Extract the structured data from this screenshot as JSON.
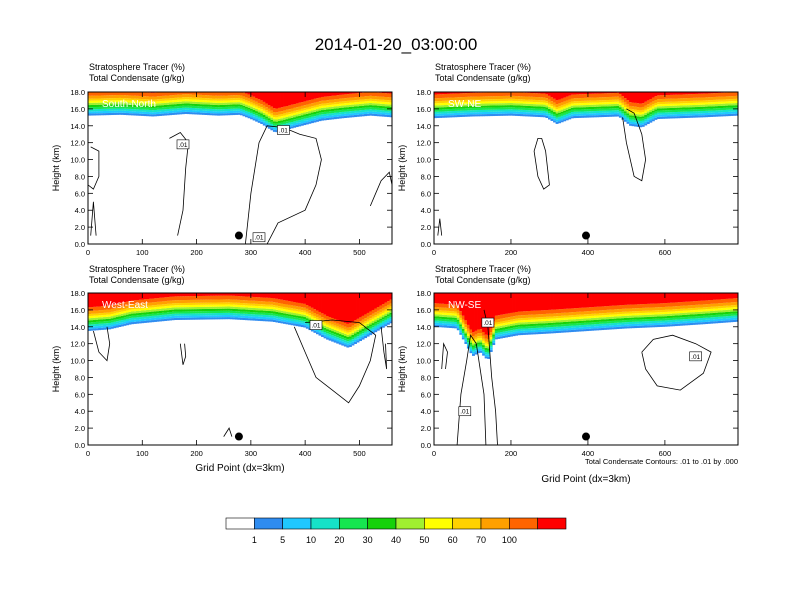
{
  "title": "2014-01-20_03:00:00",
  "colors": {
    "levels": [
      "#ffffff",
      "#2f8cf0",
      "#1fc8ff",
      "#16e2c8",
      "#16e650",
      "#16d20a",
      "#a0f030",
      "#ffff00",
      "#ffd200",
      "#ffa000",
      "#ff6400",
      "#ff0000"
    ],
    "contour": "#000000"
  },
  "chart_data": [
    {
      "type": "heatmap",
      "panel_id": "south-north",
      "label": "South-North",
      "header": [
        "Stratosphere Tracer   (%)",
        "Total Condensate   (g/kg)"
      ],
      "ylabel": "Height (km)",
      "xlabel": "",
      "xlim": [
        0,
        560
      ],
      "ylim": [
        0,
        18
      ],
      "xticks": [
        0,
        100,
        200,
        300,
        400,
        500
      ],
      "yticks": [
        0,
        2,
        4,
        6,
        8,
        10,
        12,
        14,
        16,
        18
      ],
      "ytick_labels": [
        "0.0",
        "2.0",
        "4.0",
        "6.0",
        "8.0",
        "10.0",
        "12.0",
        "14.0",
        "16.0",
        "18.0"
      ],
      "tracer_base_km": 15.0,
      "tracer_profile": [
        [
          0,
          15.2
        ],
        [
          60,
          15.3
        ],
        [
          120,
          15.1
        ],
        [
          180,
          15.4
        ],
        [
          240,
          15.2
        ],
        [
          280,
          15.3
        ],
        [
          300,
          14.8
        ],
        [
          320,
          14.2
        ],
        [
          345,
          13.2
        ],
        [
          370,
          13.6
        ],
        [
          400,
          14.1
        ],
        [
          430,
          14.6
        ],
        [
          470,
          14.9
        ],
        [
          520,
          15.2
        ],
        [
          560,
          15.0
        ]
      ],
      "contour_labels": [
        {
          "x": 360,
          "y": 13.5,
          "text": ".01"
        },
        {
          "x": 175,
          "y": 11.8,
          "text": ".01"
        },
        {
          "x": 315,
          "y": 0.8,
          "text": ".01"
        }
      ],
      "marker": {
        "x": 278,
        "y": 1.0
      },
      "contours": [
        [
          [
            5,
            11.5
          ],
          [
            20,
            11.0
          ],
          [
            20,
            8.0
          ],
          [
            10,
            6.5
          ],
          [
            0,
            7.0
          ]
        ],
        [
          [
            150,
            12.5
          ],
          [
            170,
            13.2
          ],
          [
            185,
            12.0
          ],
          [
            180,
            9.0
          ],
          [
            175,
            4.0
          ],
          [
            165,
            1.0
          ]
        ],
        [
          [
            290,
            0.0
          ],
          [
            300,
            6.0
          ],
          [
            315,
            12.0
          ],
          [
            330,
            14.0
          ],
          [
            360,
            13.8
          ],
          [
            390,
            13.0
          ],
          [
            420,
            12.5
          ],
          [
            430,
            10.0
          ],
          [
            420,
            7.0
          ],
          [
            400,
            4.0
          ],
          [
            350,
            2.5
          ],
          [
            330,
            0.0
          ]
        ],
        [
          [
            520,
            4.5
          ],
          [
            530,
            6.0
          ],
          [
            540,
            7.5
          ],
          [
            555,
            8.5
          ],
          [
            560,
            7.0
          ]
        ],
        [
          [
            5,
            1.0
          ],
          [
            10,
            5.0
          ],
          [
            15,
            1.0
          ]
        ]
      ]
    },
    {
      "type": "heatmap",
      "panel_id": "sw-ne",
      "label": "SW-NE",
      "header": [
        "Stratosphere Tracer   (%)",
        "Total Condensate   (g/kg)"
      ],
      "ylabel": "Height (km)",
      "xlabel": "",
      "xlim": [
        0,
        790
      ],
      "ylim": [
        0,
        18
      ],
      "xticks": [
        0,
        200,
        400,
        600
      ],
      "yticks": [
        0,
        2,
        4,
        6,
        8,
        10,
        12,
        14,
        16,
        18
      ],
      "ytick_labels": [
        "0.0",
        "2.0",
        "4.0",
        "6.0",
        "8.0",
        "10.0",
        "12.0",
        "14.0",
        "16.0",
        "18.0"
      ],
      "tracer_base_km": 15.0,
      "tracer_profile": [
        [
          0,
          14.9
        ],
        [
          100,
          15.1
        ],
        [
          200,
          15.2
        ],
        [
          290,
          15.0
        ],
        [
          320,
          14.2
        ],
        [
          360,
          14.9
        ],
        [
          480,
          15.1
        ],
        [
          510,
          14.0
        ],
        [
          540,
          13.8
        ],
        [
          580,
          14.8
        ],
        [
          700,
          15.0
        ],
        [
          790,
          15.2
        ]
      ],
      "contour_labels": [],
      "marker": {
        "x": 395,
        "y": 1.0
      },
      "contours": [
        [
          [
            280,
            12.5
          ],
          [
            290,
            11.0
          ],
          [
            300,
            7.0
          ],
          [
            285,
            6.5
          ],
          [
            270,
            8.0
          ],
          [
            260,
            11.0
          ],
          [
            270,
            12.5
          ],
          [
            280,
            12.5
          ]
        ],
        [
          [
            490,
            15.0
          ],
          [
            500,
            12.0
          ],
          [
            520,
            8.0
          ],
          [
            540,
            7.5
          ],
          [
            550,
            10.0
          ],
          [
            540,
            13.0
          ],
          [
            520,
            15.5
          ],
          [
            500,
            16.0
          ]
        ],
        [
          [
            10,
            1.0
          ],
          [
            15,
            3.0
          ],
          [
            20,
            1.0
          ]
        ]
      ]
    },
    {
      "type": "heatmap",
      "panel_id": "west-east",
      "label": "West-East",
      "header": [
        "Stratosphere Tracer   (%)",
        "Total Condensate   (g/kg)"
      ],
      "ylabel": "Height (km)",
      "xlabel": "Grid Point (dx=3km)",
      "xlim": [
        0,
        560
      ],
      "ylim": [
        0,
        18
      ],
      "xticks": [
        0,
        100,
        200,
        300,
        400,
        500
      ],
      "yticks": [
        0,
        2,
        4,
        6,
        8,
        10,
        12,
        14,
        16,
        18
      ],
      "ytick_labels": [
        "0.0",
        "2.0",
        "4.0",
        "6.0",
        "8.0",
        "10.0",
        "12.0",
        "14.0",
        "16.0",
        "18.0"
      ],
      "tracer_base_km": 14.5,
      "tracer_profile": [
        [
          0,
          13.5
        ],
        [
          40,
          13.7
        ],
        [
          80,
          14.3
        ],
        [
          160,
          14.8
        ],
        [
          260,
          14.9
        ],
        [
          340,
          14.6
        ],
        [
          400,
          13.9
        ],
        [
          440,
          12.5
        ],
        [
          480,
          11.5
        ],
        [
          520,
          13.0
        ],
        [
          560,
          14.5
        ]
      ],
      "contour_labels": [
        {
          "x": 420,
          "y": 14.2,
          "text": ".01"
        }
      ],
      "marker": {
        "x": 278,
        "y": 1.0
      },
      "contours": [
        [
          [
            10,
            13.5
          ],
          [
            20,
            11.0
          ],
          [
            35,
            10.0
          ],
          [
            40,
            12.0
          ],
          [
            35,
            14.0
          ]
        ],
        [
          [
            170,
            12.0
          ],
          [
            175,
            9.5
          ],
          [
            180,
            10.5
          ],
          [
            178,
            12.0
          ]
        ],
        [
          [
            380,
            14.0
          ],
          [
            400,
            11.0
          ],
          [
            420,
            8.0
          ],
          [
            450,
            6.5
          ],
          [
            480,
            5.0
          ],
          [
            500,
            7.0
          ],
          [
            520,
            10.0
          ],
          [
            530,
            13.0
          ],
          [
            500,
            14.5
          ],
          [
            450,
            14.8
          ],
          [
            400,
            14.5
          ]
        ],
        [
          [
            540,
            14.0
          ],
          [
            545,
            11.0
          ],
          [
            550,
            9.0
          ],
          [
            548,
            12.0
          ]
        ],
        [
          [
            250,
            1.0
          ],
          [
            260,
            2.0
          ],
          [
            265,
            1.0
          ]
        ]
      ]
    },
    {
      "type": "heatmap",
      "panel_id": "nw-se",
      "label": "NW-SE",
      "header": [
        "Stratosphere Tracer   (%)",
        "Total Condensate   (g/kg)"
      ],
      "ylabel": "Height (km)",
      "xlabel": "Grid Point (dx=3km)",
      "xlim": [
        0,
        790
      ],
      "ylim": [
        0,
        18
      ],
      "xticks": [
        0,
        200,
        400,
        600
      ],
      "yticks": [
        0,
        2,
        4,
        6,
        8,
        10,
        12,
        14,
        16,
        18
      ],
      "ytick_labels": [
        "0.0",
        "2.0",
        "4.0",
        "6.0",
        "8.0",
        "10.0",
        "12.0",
        "14.0",
        "16.0",
        "18.0"
      ],
      "tracer_base_km": 14.5,
      "tracer_profile": [
        [
          0,
          14.0
        ],
        [
          60,
          13.8
        ],
        [
          100,
          10.5
        ],
        [
          120,
          11.0
        ],
        [
          140,
          10.0
        ],
        [
          160,
          12.5
        ],
        [
          220,
          13.0
        ],
        [
          300,
          13.2
        ],
        [
          400,
          13.5
        ],
        [
          500,
          13.8
        ],
        [
          600,
          14.0
        ],
        [
          700,
          14.3
        ],
        [
          790,
          14.6
        ]
      ],
      "contour_labels": [
        {
          "x": 140,
          "y": 14.5,
          "text": ".01"
        },
        {
          "x": 80,
          "y": 4.0,
          "text": ".01"
        },
        {
          "x": 680,
          "y": 10.5,
          "text": ".01"
        }
      ],
      "marker": {
        "x": 395,
        "y": 1.0
      },
      "contours": [
        [
          [
            60,
            0.0
          ],
          [
            70,
            6.0
          ],
          [
            85,
            10.0
          ],
          [
            95,
            13.0
          ],
          [
            110,
            12.0
          ],
          [
            130,
            6.0
          ],
          [
            135,
            0.0
          ]
        ],
        [
          [
            130,
            16.0
          ],
          [
            140,
            14.0
          ],
          [
            150,
            8.0
          ],
          [
            160,
            4.0
          ],
          [
            165,
            0.0
          ]
        ],
        [
          [
            540,
            11.0
          ],
          [
            570,
            12.5
          ],
          [
            620,
            13.0
          ],
          [
            680,
            12.0
          ],
          [
            720,
            11.0
          ],
          [
            700,
            8.5
          ],
          [
            640,
            6.5
          ],
          [
            580,
            7.0
          ],
          [
            550,
            9.0
          ],
          [
            540,
            11.0
          ]
        ],
        [
          [
            20,
            9.0
          ],
          [
            25,
            12.0
          ],
          [
            35,
            11.0
          ],
          [
            30,
            9.0
          ]
        ]
      ]
    }
  ],
  "contour_note": "Total Condensate Contours: .01 to .01 by .000",
  "colorbar": {
    "tick_labels": [
      "1",
      "5",
      "10",
      "20",
      "30",
      "40",
      "50",
      "60",
      "70",
      "100"
    ]
  }
}
